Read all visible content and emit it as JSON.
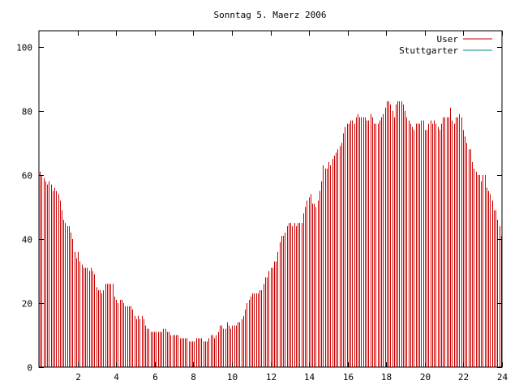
{
  "chart_data": {
    "type": "bar",
    "title": "Sonntag 5. Maerz 2006",
    "xlabel": "",
    "ylabel": "",
    "xlim": [
      0,
      24
    ],
    "ylim": [
      0,
      105
    ],
    "x_ticks": [
      2,
      4,
      6,
      8,
      10,
      12,
      14,
      16,
      18,
      20,
      22,
      24
    ],
    "y_ticks": [
      0,
      20,
      40,
      60,
      80,
      100
    ],
    "legend_position": "top-right",
    "grid": false,
    "series": [
      {
        "name": "User",
        "color": "#cc0000",
        "style": "impulses",
        "values": [
          61,
          60,
          59,
          58,
          57,
          58,
          57,
          55,
          56,
          55,
          54,
          52,
          49,
          46,
          45,
          44,
          44,
          42,
          40,
          36,
          34,
          36,
          33,
          32,
          31,
          31,
          31,
          30,
          31,
          30,
          29,
          25,
          24,
          24,
          23,
          24,
          26,
          26,
          26,
          26,
          26,
          22,
          21,
          20,
          21,
          21,
          20,
          19,
          19,
          19,
          19,
          18,
          16,
          15,
          16,
          15,
          16,
          15,
          13,
          12,
          12,
          11,
          11,
          11,
          11,
          11,
          11,
          11,
          12,
          12,
          11,
          11,
          10,
          10,
          10,
          10,
          10,
          9,
          9,
          9,
          9,
          9,
          8,
          8,
          8,
          8,
          9,
          9,
          9,
          9,
          8,
          8,
          8,
          9,
          10,
          10,
          9,
          10,
          11,
          13,
          13,
          12,
          12,
          14,
          13,
          12,
          13,
          13,
          13,
          14,
          14,
          15,
          16,
          18,
          20,
          21,
          22,
          23,
          23,
          23,
          23,
          24,
          24,
          26,
          28,
          28,
          30,
          31,
          31,
          33,
          33,
          36,
          39,
          41,
          41,
          42,
          44,
          45,
          45,
          44,
          45,
          44,
          45,
          45,
          45,
          48,
          50,
          52,
          53,
          54,
          51,
          51,
          50,
          52,
          55,
          58,
          63,
          62,
          62,
          64,
          63,
          65,
          66,
          67,
          68,
          69,
          70,
          73,
          75,
          76,
          76,
          77,
          77,
          76,
          78,
          79,
          78,
          78,
          78,
          78,
          77,
          77,
          79,
          78,
          76,
          76,
          76,
          77,
          78,
          79,
          81,
          83,
          83,
          82,
          80,
          78,
          82,
          83,
          83,
          83,
          82,
          80,
          78,
          77,
          76,
          75,
          74,
          76,
          76,
          76,
          77,
          77,
          74,
          74,
          76,
          77,
          76,
          77,
          76,
          75,
          74,
          76,
          78,
          78,
          78,
          78,
          81,
          77,
          76,
          78,
          78,
          79,
          78,
          74,
          72,
          70,
          68,
          68,
          64,
          62,
          61,
          60,
          60,
          58,
          60,
          60,
          56,
          55,
          54,
          52,
          49,
          49,
          46,
          44,
          41
        ]
      },
      {
        "name": "Stuttgarter",
        "color": "#008b8b",
        "style": "impulses",
        "values": []
      }
    ]
  }
}
